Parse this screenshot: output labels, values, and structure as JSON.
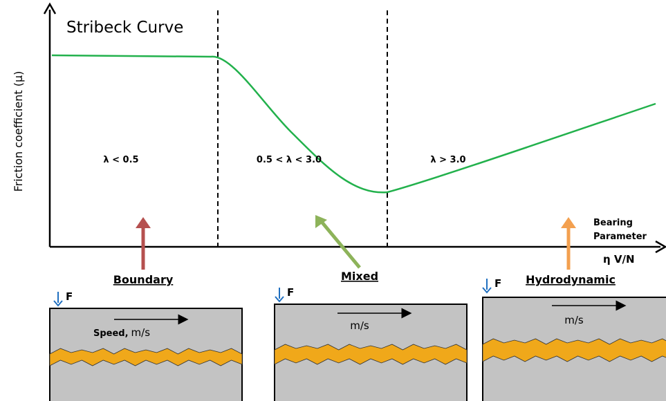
{
  "title": "Stribeck Curve",
  "y_axis_label": "Friction coefficient (μ)",
  "x_axis": {
    "label_lines": [
      "Bearing",
      "Parameter"
    ],
    "symbol": "η V/N"
  },
  "regions": [
    {
      "condition": "λ < 0.5",
      "regime": "Boundary",
      "force": "F",
      "speed": [
        "Speed,",
        "m/s"
      ]
    },
    {
      "condition": "0.5 < λ < 3.0",
      "regime": "Mixed",
      "force": "F",
      "speed": [
        "m/s"
      ]
    },
    {
      "condition": "λ > 3.0",
      "regime": "Hydrodynamic",
      "force": "F",
      "speed": [
        "m/s"
      ]
    }
  ]
}
